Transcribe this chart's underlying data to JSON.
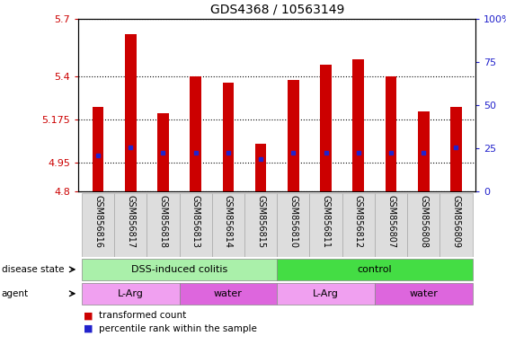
{
  "title": "GDS4368 / 10563149",
  "samples": [
    "GSM856816",
    "GSM856817",
    "GSM856818",
    "GSM856813",
    "GSM856814",
    "GSM856815",
    "GSM856810",
    "GSM856811",
    "GSM856812",
    "GSM856807",
    "GSM856808",
    "GSM856809"
  ],
  "bar_values": [
    5.24,
    5.62,
    5.21,
    5.4,
    5.37,
    5.05,
    5.38,
    5.46,
    5.49,
    5.4,
    5.22,
    5.24
  ],
  "percentile_values": [
    4.99,
    5.03,
    5.0,
    5.0,
    5.0,
    4.97,
    5.0,
    5.0,
    5.0,
    5.0,
    5.0,
    5.03
  ],
  "ymin": 4.8,
  "ymax": 5.7,
  "yticks": [
    4.8,
    4.95,
    5.175,
    5.4,
    5.7
  ],
  "ytick_labels": [
    "4.8",
    "4.95",
    "5.175",
    "5.4",
    "5.7"
  ],
  "right_yticks": [
    0,
    25,
    50,
    75,
    100
  ],
  "right_ytick_labels": [
    "0",
    "25",
    "50",
    "75",
    "100%"
  ],
  "bar_color": "#cc0000",
  "percentile_color": "#2222cc",
  "bar_width": 0.35,
  "disease_state_groups": [
    {
      "label": "DSS-induced colitis",
      "start": 0,
      "end": 6,
      "color": "#aaf0aa"
    },
    {
      "label": "control",
      "start": 6,
      "end": 12,
      "color": "#44dd44"
    }
  ],
  "agent_groups": [
    {
      "label": "L-Arg",
      "start": 0,
      "end": 3,
      "color": "#f0a0f0"
    },
    {
      "label": "water",
      "start": 3,
      "end": 6,
      "color": "#dd66dd"
    },
    {
      "label": "L-Arg",
      "start": 6,
      "end": 9,
      "color": "#f0a0f0"
    },
    {
      "label": "water",
      "start": 9,
      "end": 12,
      "color": "#dd66dd"
    }
  ],
  "legend_items": [
    {
      "label": "transformed count",
      "color": "#cc0000"
    },
    {
      "label": "percentile rank within the sample",
      "color": "#2222cc"
    }
  ],
  "title_fontsize": 10,
  "tick_label_color_left": "#cc0000",
  "tick_label_color_right": "#2222cc",
  "background_color": "#ffffff",
  "sample_label_fontsize": 7,
  "sample_bg_color": "#dddddd",
  "sample_edge_color": "#aaaaaa"
}
